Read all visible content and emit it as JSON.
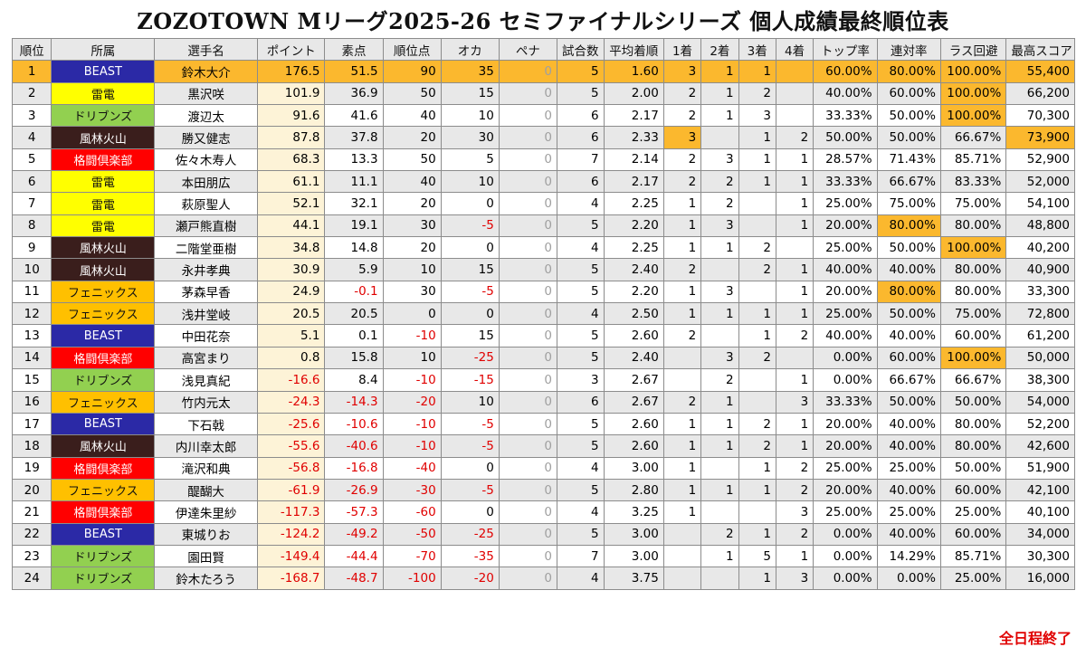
{
  "title": "ZOZOTOWN Mリーグ2025-26 セミファイナルシリーズ 個人成績最終順位表",
  "footer": "全日程終了",
  "headers": [
    "順位",
    "所属",
    "選手名",
    "ポイント",
    "素点",
    "順位点",
    "オカ",
    "ペナ",
    "試合数",
    "平均着順",
    "1着",
    "2着",
    "3着",
    "4着",
    "トップ率",
    "連対率",
    "ラス回避",
    "最高スコア"
  ],
  "team_colors": {
    "BEAST": "#2b29a6",
    "雷電": "#ffff00",
    "ドリブンズ": "#92d050",
    "風林火山": "#3a1e1c",
    "格闘倶楽部": "#ff0000",
    "フェニックス": "#ffc000"
  },
  "highlight_color": "#fbb82e",
  "rows": [
    [
      "1",
      "BEAST",
      "鈴木大介",
      "176.5",
      "51.5",
      "90",
      "35",
      "0",
      "5",
      "1.60",
      "3",
      "1",
      "1",
      "",
      "60.00%",
      "80.00%",
      "100.00%",
      "55,400"
    ],
    [
      "2",
      "雷電",
      "黒沢咲",
      "101.9",
      "36.9",
      "50",
      "15",
      "0",
      "5",
      "2.00",
      "2",
      "1",
      "2",
      "",
      "40.00%",
      "60.00%",
      "100.00%",
      "66,200"
    ],
    [
      "3",
      "ドリブンズ",
      "渡辺太",
      "91.6",
      "41.6",
      "40",
      "10",
      "0",
      "6",
      "2.17",
      "2",
      "1",
      "3",
      "",
      "33.33%",
      "50.00%",
      "100.00%",
      "70,300"
    ],
    [
      "4",
      "風林火山",
      "勝又健志",
      "87.8",
      "37.8",
      "20",
      "30",
      "0",
      "6",
      "2.33",
      "3",
      "",
      "1",
      "2",
      "50.00%",
      "50.00%",
      "66.67%",
      "73,900"
    ],
    [
      "5",
      "格闘倶楽部",
      "佐々木寿人",
      "68.3",
      "13.3",
      "50",
      "5",
      "0",
      "7",
      "2.14",
      "2",
      "3",
      "1",
      "1",
      "28.57%",
      "71.43%",
      "85.71%",
      "52,900"
    ],
    [
      "6",
      "雷電",
      "本田朋広",
      "61.1",
      "11.1",
      "40",
      "10",
      "0",
      "6",
      "2.17",
      "2",
      "2",
      "1",
      "1",
      "33.33%",
      "66.67%",
      "83.33%",
      "52,000"
    ],
    [
      "7",
      "雷電",
      "萩原聖人",
      "52.1",
      "32.1",
      "20",
      "0",
      "0",
      "4",
      "2.25",
      "1",
      "2",
      "",
      "1",
      "25.00%",
      "75.00%",
      "75.00%",
      "54,100"
    ],
    [
      "8",
      "雷電",
      "瀬戸熊直樹",
      "44.1",
      "19.1",
      "30",
      "-5",
      "0",
      "5",
      "2.20",
      "1",
      "3",
      "",
      "1",
      "20.00%",
      "80.00%",
      "80.00%",
      "48,800"
    ],
    [
      "9",
      "風林火山",
      "二階堂亜樹",
      "34.8",
      "14.8",
      "20",
      "0",
      "0",
      "4",
      "2.25",
      "1",
      "1",
      "2",
      "",
      "25.00%",
      "50.00%",
      "100.00%",
      "40,200"
    ],
    [
      "10",
      "風林火山",
      "永井孝典",
      "30.9",
      "5.9",
      "10",
      "15",
      "0",
      "5",
      "2.40",
      "2",
      "",
      "2",
      "1",
      "40.00%",
      "40.00%",
      "80.00%",
      "40,900"
    ],
    [
      "11",
      "フェニックス",
      "茅森早香",
      "24.9",
      "-0.1",
      "30",
      "-5",
      "0",
      "5",
      "2.20",
      "1",
      "3",
      "",
      "1",
      "20.00%",
      "80.00%",
      "80.00%",
      "33,300"
    ],
    [
      "12",
      "フェニックス",
      "浅井堂岐",
      "20.5",
      "20.5",
      "0",
      "0",
      "0",
      "4",
      "2.50",
      "1",
      "1",
      "1",
      "1",
      "25.00%",
      "50.00%",
      "75.00%",
      "72,800"
    ],
    [
      "13",
      "BEAST",
      "中田花奈",
      "5.1",
      "0.1",
      "-10",
      "15",
      "0",
      "5",
      "2.60",
      "2",
      "",
      "1",
      "2",
      "40.00%",
      "40.00%",
      "60.00%",
      "61,200"
    ],
    [
      "14",
      "格闘倶楽部",
      "高宮まり",
      "0.8",
      "15.8",
      "10",
      "-25",
      "0",
      "5",
      "2.40",
      "",
      "3",
      "2",
      "",
      "0.00%",
      "60.00%",
      "100.00%",
      "50,000"
    ],
    [
      "15",
      "ドリブンズ",
      "浅見真紀",
      "-16.6",
      "8.4",
      "-10",
      "-15",
      "0",
      "3",
      "2.67",
      "",
      "2",
      "",
      "1",
      "0.00%",
      "66.67%",
      "66.67%",
      "38,300"
    ],
    [
      "16",
      "フェニックス",
      "竹内元太",
      "-24.3",
      "-14.3",
      "-20",
      "10",
      "0",
      "6",
      "2.67",
      "2",
      "1",
      "",
      "3",
      "33.33%",
      "50.00%",
      "50.00%",
      "54,000"
    ],
    [
      "17",
      "BEAST",
      "下石戟",
      "-25.6",
      "-10.6",
      "-10",
      "-5",
      "0",
      "5",
      "2.60",
      "1",
      "1",
      "2",
      "1",
      "20.00%",
      "40.00%",
      "80.00%",
      "52,200"
    ],
    [
      "18",
      "風林火山",
      "内川幸太郎",
      "-55.6",
      "-40.6",
      "-10",
      "-5",
      "0",
      "5",
      "2.60",
      "1",
      "1",
      "2",
      "1",
      "20.00%",
      "40.00%",
      "80.00%",
      "42,600"
    ],
    [
      "19",
      "格闘倶楽部",
      "滝沢和典",
      "-56.8",
      "-16.8",
      "-40",
      "0",
      "0",
      "4",
      "3.00",
      "1",
      "",
      "1",
      "2",
      "25.00%",
      "25.00%",
      "50.00%",
      "51,900"
    ],
    [
      "20",
      "フェニックス",
      "醍醐大",
      "-61.9",
      "-26.9",
      "-30",
      "-5",
      "0",
      "5",
      "2.80",
      "1",
      "1",
      "1",
      "2",
      "20.00%",
      "40.00%",
      "60.00%",
      "42,100"
    ],
    [
      "21",
      "格闘倶楽部",
      "伊達朱里紗",
      "-117.3",
      "-57.3",
      "-60",
      "0",
      "0",
      "4",
      "3.25",
      "1",
      "",
      "",
      "3",
      "25.00%",
      "25.00%",
      "25.00%",
      "40,100"
    ],
    [
      "22",
      "BEAST",
      "東城りお",
      "-124.2",
      "-49.2",
      "-50",
      "-25",
      "0",
      "5",
      "3.00",
      "",
      "2",
      "1",
      "2",
      "0.00%",
      "40.00%",
      "60.00%",
      "34,000"
    ],
    [
      "23",
      "ドリブンズ",
      "園田賢",
      "-149.4",
      "-44.4",
      "-70",
      "-35",
      "0",
      "7",
      "3.00",
      "",
      "1",
      "5",
      "1",
      "0.00%",
      "14.29%",
      "85.71%",
      "30,300"
    ],
    [
      "24",
      "ドリブンズ",
      "鈴木たろう",
      "-168.7",
      "-48.7",
      "-100",
      "-20",
      "0",
      "4",
      "3.75",
      "",
      "",
      "1",
      "3",
      "0.00%",
      "0.00%",
      "25.00%",
      "16,000"
    ]
  ],
  "highlights": [
    [
      1,
      0
    ],
    [
      1,
      3
    ],
    [
      1,
      4
    ],
    [
      1,
      5
    ],
    [
      1,
      6
    ],
    [
      1,
      8
    ],
    [
      1,
      9
    ],
    [
      1,
      10
    ],
    [
      1,
      11
    ],
    [
      1,
      12
    ],
    [
      1,
      13
    ],
    [
      1,
      14
    ],
    [
      1,
      15
    ],
    [
      1,
      16
    ],
    [
      2,
      16
    ],
    [
      3,
      16
    ],
    [
      4,
      10
    ],
    [
      4,
      17
    ],
    [
      8,
      15
    ],
    [
      9,
      16
    ],
    [
      11,
      15
    ],
    [
      14,
      16
    ]
  ]
}
